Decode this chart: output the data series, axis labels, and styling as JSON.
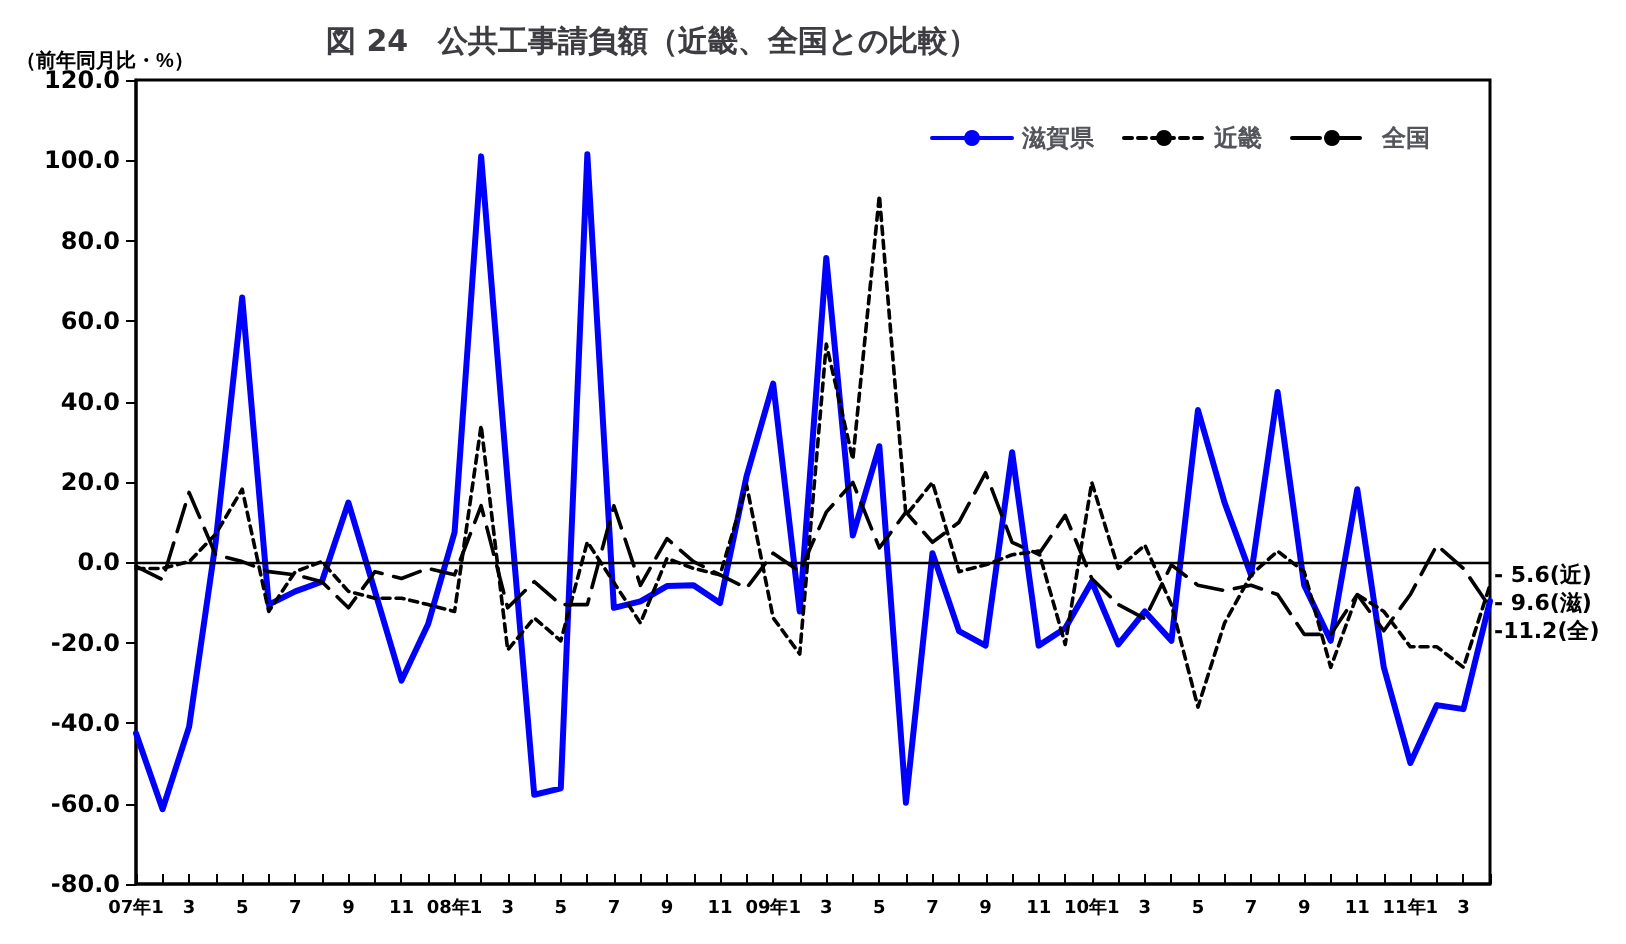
{
  "chart_data": {
    "type": "line",
    "title": "図 24　公共工事請負額（近畿、全国との比較）",
    "ylabel": "（前年同月比・%）",
    "categories": [
      "07年1",
      null,
      "3",
      null,
      "5",
      null,
      "7",
      null,
      "9",
      null,
      "11",
      null,
      "08年1",
      null,
      "3",
      null,
      "5",
      null,
      "7",
      null,
      "9",
      null,
      "11",
      null,
      "09年1",
      null,
      "3",
      null,
      "5",
      null,
      "7",
      null,
      "9",
      null,
      "11",
      null,
      "10年1",
      null,
      "3",
      null,
      "5",
      null,
      "7",
      null,
      "9",
      null,
      "11",
      null,
      "11年1",
      null,
      "3",
      null
    ],
    "series": [
      {
        "name": "滋賀県",
        "color": "#0000ff",
        "line_style": "solid",
        "values": [
          -42.5,
          -61.4,
          -40.9,
          5,
          65.9,
          -10.5,
          -7.2,
          -4.8,
          14.9,
          -7.2,
          -29.4,
          -15.4,
          7.5,
          101,
          20,
          -57.8,
          -56.2,
          101.5,
          -11.3,
          -9.7,
          -5.9,
          -5.7,
          -10.1,
          21.5,
          44.5,
          -12.2,
          75.7,
          6.7,
          28.9,
          -59.8,
          2.3,
          -17.1,
          -20.7,
          27.4,
          -20.7,
          -16.4,
          -4.8,
          -20.4,
          -12.2,
          -19.5,
          37.9,
          14.9,
          -3.1,
          42.4,
          -5.7,
          -19.5,
          18.2,
          -26.1,
          -49.9,
          -35.5,
          -36.5,
          -9.6
        ]
      },
      {
        "name": "近畿",
        "color": "#000000",
        "line_style": "dotted",
        "values": [
          -1.5,
          -1.5,
          0.2,
          7,
          18.2,
          -12.2,
          -2.3,
          0.2,
          -7.2,
          -8.9,
          -8.9,
          -10.5,
          -12.2,
          34.1,
          -21.8,
          -13.8,
          -19.5,
          5.1,
          -5,
          -15.1,
          1,
          -1.5,
          -3.1,
          19.2,
          -13.8,
          -22.8,
          54.3,
          25.6,
          91.3,
          11.7,
          19.9,
          -2.3,
          -0.6,
          1.9,
          2.8,
          -20.4,
          19.9,
          -1.5,
          4.3,
          -10.5,
          -36,
          -15.1,
          -3.1,
          2.8,
          -2.3,
          -26.1,
          -8,
          -12.2,
          -21,
          -21,
          -26.1,
          -5.6
        ]
      },
      {
        "name": "全国",
        "color": "#000000",
        "line_style": "dashed",
        "values": [
          -1,
          -4.3,
          17.4,
          1.9,
          0.2,
          -2.3,
          -3.1,
          -4.8,
          -11.3,
          -2.3,
          -4,
          -1.5,
          -3.1,
          14.1,
          -11.3,
          -4.8,
          -10.5,
          -10.5,
          14.1,
          -5.7,
          5.9,
          0.2,
          -3.1,
          -6.4,
          2.3,
          -2.3,
          12.5,
          19.9,
          3.6,
          12.5,
          5,
          10,
          22.3,
          5,
          2,
          11.7,
          -4,
          -10.5,
          -14,
          -0.6,
          -5.7,
          -7,
          -5.7,
          -8,
          -17.9,
          -17.9,
          -8,
          -17,
          -8,
          4.3,
          -1.5,
          -11.2
        ]
      }
    ],
    "ylim": [
      -80,
      120
    ],
    "yticks": [
      {
        "value": -80,
        "label": "-80.0"
      },
      {
        "value": -60,
        "label": "-60.0"
      },
      {
        "value": -40,
        "label": "-40.0"
      },
      {
        "value": -20,
        "label": "-20.0"
      },
      {
        "value": 0,
        "label": "0.0"
      },
      {
        "value": 20,
        "label": "20.0"
      },
      {
        "value": 40,
        "label": "40.0"
      },
      {
        "value": 60,
        "label": "60.0"
      },
      {
        "value": 80,
        "label": "80.0"
      },
      {
        "value": 100,
        "label": "100.0"
      },
      {
        "value": 120,
        "label": "120.0"
      }
    ],
    "ref_lines": [
      {
        "axis": "y",
        "value": 0
      }
    ],
    "annotations": [
      "- 5.6(近)",
      "- 9.6(滋)",
      "-11.2(全)"
    ],
    "legend": "top right",
    "grid": false,
    "marker": "none"
  }
}
